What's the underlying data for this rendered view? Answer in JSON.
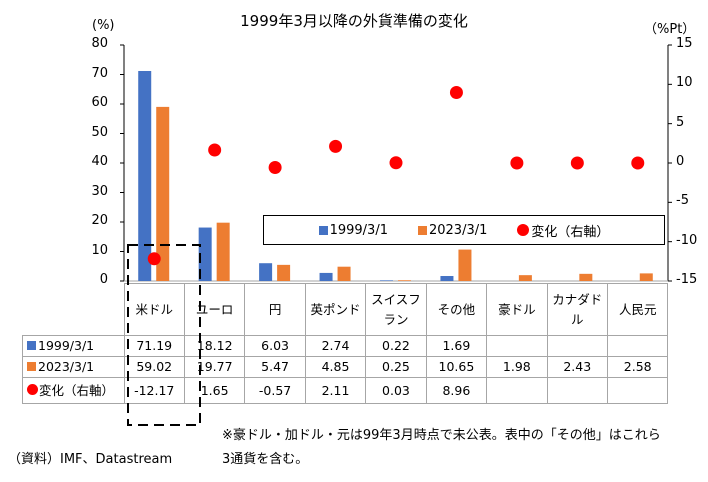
{
  "chart_data": {
    "type": "bar",
    "title": "1999年3月以降の外貨準備の変化",
    "left_axis_unit": "(%)",
    "right_axis_unit": "（%Pt）",
    "ylim": [
      0,
      80
    ],
    "y2lim": [
      -15,
      15
    ],
    "left_ticks": [
      "80",
      "70",
      "60",
      "50",
      "40",
      "30",
      "20",
      "10",
      "0"
    ],
    "right_ticks": [
      "15",
      "10",
      "5",
      "0",
      "-5",
      "-10",
      "-15"
    ],
    "categories": [
      "米ドル",
      "ユーロ",
      "円",
      "英ポンド",
      "スイスフラン",
      "その他",
      "豪ドル",
      "カナダドル",
      "人民元"
    ],
    "category_lines": [
      [
        "米ドル"
      ],
      [
        "ユーロ"
      ],
      [
        "円"
      ],
      [
        "英ポンド"
      ],
      [
        "スイスフ",
        "ラン"
      ],
      [
        "その他"
      ],
      [
        "豪ドル"
      ],
      [
        "カナダド",
        "ル"
      ],
      [
        "人民元"
      ]
    ],
    "series": [
      {
        "name": "1999/3/1",
        "type": "bar",
        "axis": "left",
        "color": "#4472c4",
        "values": [
          71.19,
          18.12,
          6.03,
          2.74,
          0.22,
          1.69,
          null,
          null,
          null
        ],
        "labels": [
          "71.19",
          "18.12",
          "6.03",
          "2.74",
          "0.22",
          "1.69",
          "",
          "",
          ""
        ]
      },
      {
        "name": "2023/3/1",
        "type": "bar",
        "axis": "left",
        "color": "#ed7d31",
        "values": [
          59.02,
          19.77,
          5.47,
          4.85,
          0.25,
          10.65,
          1.98,
          2.43,
          2.58
        ],
        "labels": [
          "59.02",
          "19.77",
          "5.47",
          "4.85",
          "0.25",
          "10.65",
          "1.98",
          "2.43",
          "2.58"
        ]
      },
      {
        "name": "変化（右軸）",
        "type": "scatter",
        "axis": "right",
        "color": "#ff0000",
        "values": [
          -12.17,
          1.65,
          -0.57,
          2.11,
          0.03,
          8.96,
          0,
          0,
          0
        ],
        "labels": [
          "-12.17",
          "1.65",
          "-0.57",
          "2.11",
          "0.03",
          "8.96",
          "",
          "",
          ""
        ]
      }
    ],
    "legend_position": "inside-lower-right",
    "grid": false
  },
  "note": "※豪ドル・加ドル・元は99年3月時点で未公表。表中の「その他」はこれら3通貨を含む。",
  "source": "（資料）IMF、Datastream"
}
